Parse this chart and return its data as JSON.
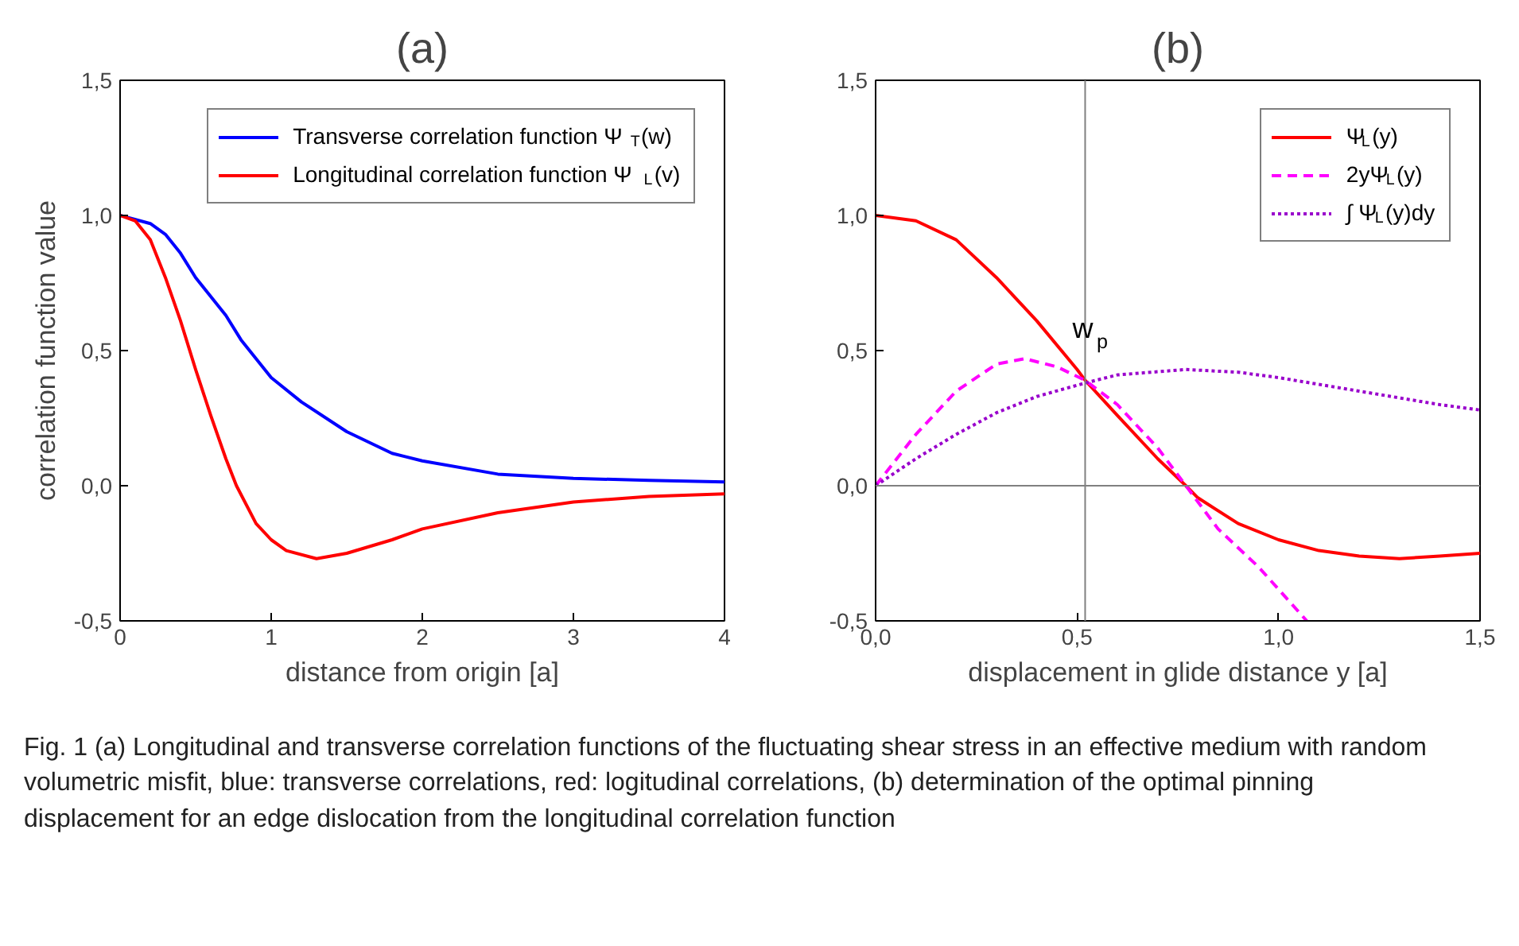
{
  "chart_data": [
    {
      "type": "line",
      "title": "(a)",
      "xlabel": "distance from origin [a]",
      "ylabel": "correlation function value",
      "xlim": [
        0,
        4
      ],
      "ylim": [
        -0.5,
        1.5
      ],
      "xticks": [
        0,
        1,
        2,
        3,
        4
      ],
      "yticks": [
        {
          "value": -0.5,
          "label": "-0,5"
        },
        {
          "value": 0,
          "label": "0,0"
        },
        {
          "value": 0.5,
          "label": "0,5"
        },
        {
          "value": 1.0,
          "label": "1,0"
        },
        {
          "value": 1.5,
          "label": "1,5"
        }
      ],
      "grid": false,
      "legend": "top right",
      "line_style": "solid",
      "series": [
        {
          "name": "Transverse correlation function Ψ$_{T}$(w)",
          "color": "#0000ff",
          "x": [
            0,
            0.2,
            0.3,
            0.4,
            0.5,
            0.6,
            0.7,
            0.8,
            1.0,
            1.2,
            1.5,
            1.8,
            2.0,
            2.5,
            3.0,
            3.5,
            4.0
          ],
          "values": [
            1.0,
            0.97,
            0.93,
            0.86,
            0.77,
            0.7,
            0.63,
            0.54,
            0.4,
            0.31,
            0.2,
            0.12,
            0.092,
            0.043,
            0.027,
            0.02,
            0.014
          ]
        },
        {
          "name": "Longitudinal correlation function Ψ$_{L}$(v)",
          "color": "#ff0000",
          "x": [
            0,
            0.1,
            0.2,
            0.3,
            0.4,
            0.5,
            0.6,
            0.7,
            0.77,
            0.9,
            1.0,
            1.1,
            1.3,
            1.5,
            1.8,
            2.0,
            2.5,
            3.0,
            3.5,
            4.0
          ],
          "values": [
            1.0,
            0.98,
            0.91,
            0.77,
            0.61,
            0.43,
            0.26,
            0.1,
            0.0,
            -0.14,
            -0.2,
            -0.24,
            -0.27,
            -0.25,
            -0.2,
            -0.16,
            -0.1,
            -0.06,
            -0.04,
            -0.03
          ]
        }
      ],
      "annotations": [
        "Fig. 1  (a) Longitudinal and transverse correlation functions of the fluctuating shear stress in an effective medium with random volumetric misfit, blue: transverse correlations, red: logitudinal correlations, (b) determination of the optimal pinning displacement for an edge dislocation from the longitudinal correlation function"
      ]
    },
    {
      "type": "line",
      "title": "(b)",
      "xlabel": "displacement in glide distance y [a]",
      "xlim": [
        0,
        1.5
      ],
      "ylim": [
        -0.5,
        1.5
      ],
      "xticks": [
        {
          "value": 0,
          "label": "0,0"
        },
        {
          "value": 0.5,
          "label": "0,5"
        },
        {
          "value": 1.0,
          "label": "1,0"
        },
        {
          "value": 1.5,
          "label": "1,5"
        }
      ],
      "yticks": [
        {
          "value": -0.5,
          "label": "-0,5"
        },
        {
          "value": 0,
          "label": "0,0"
        },
        {
          "value": 0.5,
          "label": "0,5"
        },
        {
          "value": 1.0,
          "label": "1,0"
        },
        {
          "value": 1.5,
          "label": "1,5"
        }
      ],
      "grid": false,
      "legend": "top right",
      "ref_lines": [
        {
          "axis": "x",
          "value": 0.52,
          "color": "#808080"
        },
        {
          "axis": "y",
          "value": 0,
          "color": "#808080"
        }
      ],
      "series": [
        {
          "name": "Ψ$_{L}$(y)",
          "color": "#ff0000",
          "line_style": "solid",
          "x": [
            0,
            0.1,
            0.2,
            0.3,
            0.4,
            0.5,
            0.52,
            0.6,
            0.7,
            0.77,
            0.8,
            0.9,
            1.0,
            1.1,
            1.2,
            1.3,
            1.4,
            1.5
          ],
          "values": [
            1.0,
            0.98,
            0.91,
            0.77,
            0.61,
            0.43,
            0.39,
            0.26,
            0.1,
            0.0,
            -0.045,
            -0.14,
            -0.2,
            -0.24,
            -0.26,
            -0.27,
            -0.26,
            -0.25
          ]
        },
        {
          "name": "2yΨ$_{L}$(y)",
          "color": "#ff00ff",
          "line_style": "dashed",
          "x": [
            0,
            0.1,
            0.2,
            0.3,
            0.37,
            0.45,
            0.52,
            0.6,
            0.7,
            0.77,
            0.85,
            0.95,
            1.07
          ],
          "values": [
            0,
            0.19,
            0.35,
            0.45,
            0.47,
            0.44,
            0.39,
            0.3,
            0.14,
            0.0,
            -0.16,
            -0.3,
            -0.5
          ]
        },
        {
          "name": "∫ Ψ$_{L}$(y)dy",
          "color": "#9900cc",
          "line_style": "dotted",
          "x": [
            0,
            0.1,
            0.2,
            0.3,
            0.4,
            0.52,
            0.6,
            0.77,
            0.9,
            1.0,
            1.2,
            1.4,
            1.5
          ],
          "values": [
            0,
            0.1,
            0.19,
            0.27,
            0.33,
            0.38,
            0.41,
            0.43,
            0.42,
            0.4,
            0.35,
            0.3,
            0.28
          ]
        }
      ],
      "annotations": [
        {
          "text": "w$_{p}$",
          "x": 0.52,
          "y": 0.5
        }
      ]
    }
  ]
}
